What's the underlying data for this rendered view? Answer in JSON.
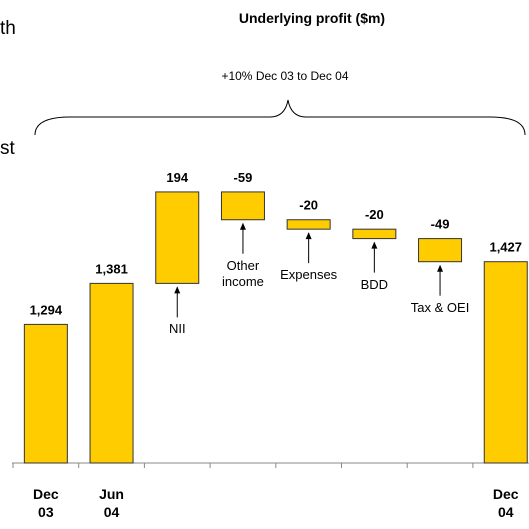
{
  "chart_data": {
    "type": "waterfall",
    "title": "Underlying profit ($m)",
    "bracket_label": "+10% Dec 03 to Dec 04",
    "categories": [
      "Dec 03",
      "Jun 04",
      null,
      null,
      null,
      null,
      null,
      "Dec 04"
    ],
    "notes": [
      null,
      null,
      "NII",
      "Other income",
      "Expenses",
      "BDD",
      "Tax & OEI",
      null
    ],
    "values": [
      1294,
      1381,
      194,
      -59,
      -20,
      -20,
      -49,
      1427
    ],
    "value_labels": [
      "1,294",
      "1,381",
      "194",
      "-59",
      "-20",
      "-20",
      "-49",
      "1,427"
    ],
    "measure": [
      "total",
      "total",
      "relative",
      "relative",
      "relative",
      "relative",
      "relative",
      "total"
    ],
    "color": "#ffcc00",
    "ylim": [
      1000,
      1700
    ],
    "side_text": [
      "th",
      "st"
    ]
  }
}
